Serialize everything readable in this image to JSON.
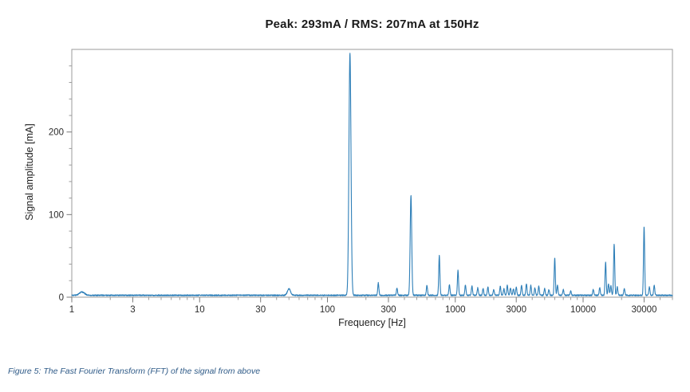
{
  "caption": "Figure 5: The Fast Fourier Transform (FFT) of the signal from above",
  "chart_data": {
    "type": "line",
    "title": "Peak: 293mA / RMS: 207mA at 150Hz",
    "xlabel": "Frequency [Hz]",
    "ylabel": "Signal amplitude [mA]",
    "x_scale": "log",
    "xlim": [
      1,
      50000
    ],
    "ylim": [
      0,
      300
    ],
    "x_ticks_major": [
      1,
      3,
      10,
      30,
      100,
      300,
      1000,
      3000,
      10000,
      30000
    ],
    "x_tick_labels": [
      "1",
      "3",
      "10",
      "30",
      "100",
      "300",
      "1000",
      "3000",
      "10000",
      "30000"
    ],
    "y_ticks_major": [
      0,
      100,
      200
    ],
    "y_tick_labels": [
      "0",
      "100",
      "200"
    ],
    "y_minor_step": 20,
    "grid": "off",
    "legend": "none",
    "line_color": "#2e7fb8",
    "noise_floor_mA": 2,
    "peak_mA": 293,
    "rms_mA": 207,
    "fundamental_Hz": 150,
    "peaks": [
      {
        "freq": 1.2,
        "amp": 4,
        "sigma": 0.02
      },
      {
        "freq": 50,
        "amp": 8,
        "sigma": 0.012
      },
      {
        "freq": 150,
        "amp": 293,
        "sigma": 0.008
      },
      {
        "freq": 250,
        "amp": 15
      },
      {
        "freq": 350,
        "amp": 9
      },
      {
        "freq": 450,
        "amp": 121,
        "sigma": 0.006
      },
      {
        "freq": 600,
        "amp": 12
      },
      {
        "freq": 750,
        "amp": 48
      },
      {
        "freq": 900,
        "amp": 13
      },
      {
        "freq": 1050,
        "amp": 30
      },
      {
        "freq": 1200,
        "amp": 12
      },
      {
        "freq": 1350,
        "amp": 11
      },
      {
        "freq": 1500,
        "amp": 9
      },
      {
        "freq": 1650,
        "amp": 8
      },
      {
        "freq": 1800,
        "amp": 10
      },
      {
        "freq": 2000,
        "amp": 7
      },
      {
        "freq": 2250,
        "amp": 11
      },
      {
        "freq": 2400,
        "amp": 8
      },
      {
        "freq": 2550,
        "amp": 12
      },
      {
        "freq": 2700,
        "amp": 9
      },
      {
        "freq": 2850,
        "amp": 8
      },
      {
        "freq": 3000,
        "amp": 10
      },
      {
        "freq": 3300,
        "amp": 12
      },
      {
        "freq": 3600,
        "amp": 14
      },
      {
        "freq": 3900,
        "amp": 12
      },
      {
        "freq": 4200,
        "amp": 9
      },
      {
        "freq": 4500,
        "amp": 11
      },
      {
        "freq": 5000,
        "amp": 8
      },
      {
        "freq": 5400,
        "amp": 7
      },
      {
        "freq": 6000,
        "amp": 45
      },
      {
        "freq": 6300,
        "amp": 12
      },
      {
        "freq": 7000,
        "amp": 7
      },
      {
        "freq": 8000,
        "amp": 5
      },
      {
        "freq": 12000,
        "amp": 7
      },
      {
        "freq": 13500,
        "amp": 9
      },
      {
        "freq": 15000,
        "amp": 40
      },
      {
        "freq": 15800,
        "amp": 14
      },
      {
        "freq": 16500,
        "amp": 12
      },
      {
        "freq": 17500,
        "amp": 62
      },
      {
        "freq": 18500,
        "amp": 10
      },
      {
        "freq": 21000,
        "amp": 8
      },
      {
        "freq": 30000,
        "amp": 83
      },
      {
        "freq": 33000,
        "amp": 10
      },
      {
        "freq": 36000,
        "amp": 12
      }
    ]
  }
}
